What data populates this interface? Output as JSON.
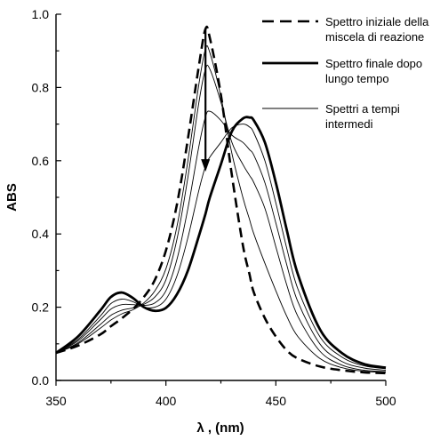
{
  "chart_data": {
    "type": "line",
    "xlabel": "λ , (nm)",
    "ylabel": "ABS",
    "xlim": [
      350,
      500
    ],
    "ylim": [
      0.0,
      1.0
    ],
    "x_ticks": [
      "350",
      "400",
      "450",
      "500"
    ],
    "y_ticks": [
      "0.0",
      "0.2",
      "0.4",
      "0.6",
      "0.8",
      "1.0"
    ],
    "grid": false,
    "legend_position": "top-right",
    "x": [
      350,
      360,
      370,
      375,
      380,
      385,
      390,
      395,
      400,
      405,
      410,
      415,
      418,
      420,
      425,
      430,
      435,
      438,
      440,
      445,
      450,
      455,
      460,
      470,
      480,
      490,
      500
    ],
    "series": [
      {
        "name": "Spettro iniziale della miscela di reazione",
        "style": "dashed-thick",
        "values": [
          0.075,
          0.095,
          0.125,
          0.148,
          0.17,
          0.195,
          0.228,
          0.275,
          0.355,
          0.48,
          0.66,
          0.86,
          0.96,
          0.935,
          0.78,
          0.56,
          0.37,
          0.29,
          0.24,
          0.17,
          0.12,
          0.082,
          0.06,
          0.038,
          0.028,
          0.022,
          0.02
        ]
      },
      {
        "name": "Spettro finale dopo lungo tempo",
        "style": "solid-thick",
        "values": [
          0.075,
          0.12,
          0.19,
          0.228,
          0.24,
          0.225,
          0.2,
          0.19,
          0.198,
          0.235,
          0.3,
          0.395,
          0.455,
          0.5,
          0.59,
          0.68,
          0.715,
          0.718,
          0.71,
          0.65,
          0.54,
          0.41,
          0.29,
          0.14,
          0.075,
          0.045,
          0.035
        ]
      },
      {
        "name": "Spettri a tempi intermedi",
        "style": "thin",
        "values": [
          0.075,
          0.112,
          0.175,
          0.21,
          0.222,
          0.215,
          0.2,
          0.2,
          0.222,
          0.285,
          0.39,
          0.52,
          0.585,
          0.61,
          0.65,
          0.69,
          0.7,
          0.692,
          0.676,
          0.6,
          0.485,
          0.36,
          0.25,
          0.12,
          0.064,
          0.04,
          0.032
        ]
      },
      {
        "name": "",
        "style": "thin",
        "values": [
          0.075,
          0.108,
          0.165,
          0.195,
          0.207,
          0.207,
          0.205,
          0.212,
          0.245,
          0.33,
          0.47,
          0.64,
          0.72,
          0.735,
          0.71,
          0.67,
          0.65,
          0.63,
          0.615,
          0.54,
          0.43,
          0.315,
          0.215,
          0.1,
          0.052,
          0.034,
          0.028
        ]
      },
      {
        "name": "",
        "style": "thin",
        "values": [
          0.075,
          0.103,
          0.152,
          0.178,
          0.192,
          0.198,
          0.208,
          0.228,
          0.275,
          0.385,
          0.555,
          0.76,
          0.85,
          0.85,
          0.76,
          0.65,
          0.59,
          0.56,
          0.54,
          0.47,
          0.365,
          0.26,
          0.175,
          0.08,
          0.042,
          0.028,
          0.024
        ]
      },
      {
        "name": "",
        "style": "thin",
        "values": [
          0.075,
          0.1,
          0.142,
          0.165,
          0.182,
          0.193,
          0.212,
          0.245,
          0.305,
          0.42,
          0.6,
          0.81,
          0.905,
          0.895,
          0.775,
          0.62,
          0.5,
          0.44,
          0.4,
          0.32,
          0.245,
          0.175,
          0.12,
          0.06,
          0.035,
          0.025,
          0.022
        ]
      }
    ],
    "legend": [
      {
        "label": "Spettro iniziale della miscela di reazione",
        "lines": [
          "Spettro iniziale della",
          "miscela di reazione"
        ],
        "style": "dashed-thick"
      },
      {
        "label": "Spettro finale dopo lungo tempo",
        "lines": [
          "Spettro finale dopo",
          "lungo tempo"
        ],
        "style": "solid-thick"
      },
      {
        "label": "Spettri a tempi intermedi",
        "lines": [
          "Spettri a tempi",
          "intermedi"
        ],
        "style": "thin"
      }
    ],
    "annotation_arrow": {
      "x": 418,
      "y_from": 0.96,
      "y_to": 0.57
    },
    "colors": {
      "line": "#000000",
      "background": "#ffffff"
    }
  }
}
